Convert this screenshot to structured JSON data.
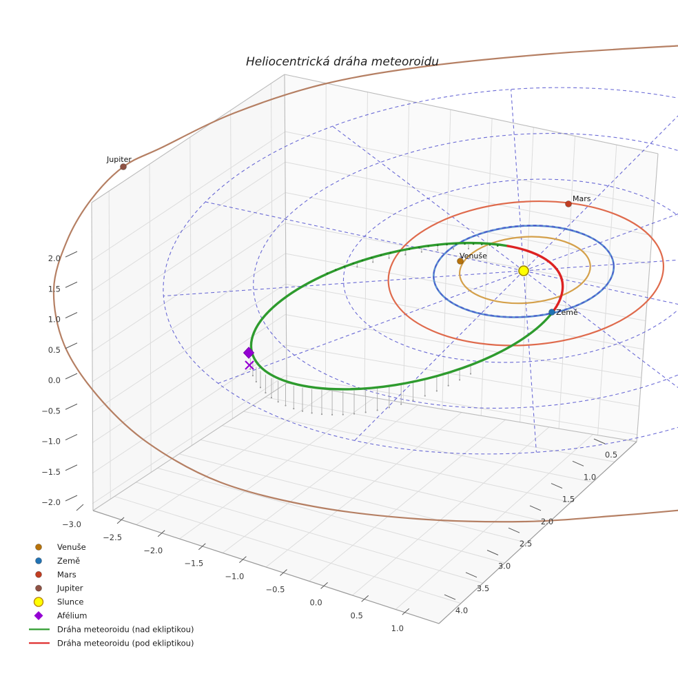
{
  "title": "Heliocentrická dráha meteoroidu",
  "axes": {
    "x_ticks": [
      "−3.0",
      "−2.5",
      "−2.0",
      "−1.5",
      "−1.0",
      "−0.5",
      "0.0",
      "0.5",
      "1.0"
    ],
    "y_ticks": [
      "0.5",
      "1.0",
      "1.5",
      "2.0",
      "2.5",
      "3.0",
      "3.5",
      "4.0"
    ],
    "z_ticks": [
      "2.0",
      "1.5",
      "1.0",
      "0.5",
      "0.0",
      "−0.5",
      "−1.0",
      "−1.5",
      "−2.0"
    ]
  },
  "colors": {
    "venus_orbit": "#d4a04a",
    "earth_orbit": "#5a8ed0",
    "mars_orbit": "#df6a4c",
    "jupiter_orbit": "#b57f63",
    "meteoroid_above": "#2e9b2e",
    "meteoroid_below": "#dd2222",
    "ecliptic_grid": "#4646cc",
    "aphelion": "#9400d3",
    "sun_fill": "#ffff00",
    "sun_edge": "#9a8200",
    "stem": "#aaaaaa"
  },
  "legend": [
    {
      "label": "Venuše",
      "marker": "dot",
      "color": "#b8730a"
    },
    {
      "label": "Země",
      "marker": "dot",
      "color": "#2173b4"
    },
    {
      "label": "Mars",
      "marker": "dot",
      "color": "#c23e22"
    },
    {
      "label": "Jupiter",
      "marker": "dot",
      "color": "#8f5244"
    },
    {
      "label": "Slunce",
      "marker": "sun",
      "color": "#ffff00"
    },
    {
      "label": "Afélium",
      "marker": "diamond",
      "color": "#9400d3"
    },
    {
      "label": "Dráha meteoroidu (nad ekliptikou)",
      "marker": "line",
      "color": "#2e9b2e"
    },
    {
      "label": "Dráha meteoroidu (pod ekliptikou)",
      "marker": "line",
      "color": "#dd2222"
    }
  ],
  "chart_data": {
    "type": "scatter",
    "projection": "3d",
    "title": "Heliocentrická dráha meteoroidu",
    "x_range": [
      -3.0,
      1.0
    ],
    "y_range": [
      0.5,
      4.0
    ],
    "z_range": [
      -2.0,
      2.0
    ],
    "grid": true,
    "legend_position": "lower-left",
    "sun": {
      "label": "Slunce",
      "position_au": [
        0,
        0,
        0
      ]
    },
    "planets": [
      {
        "name": "Venuše",
        "color": "#b8730a",
        "orbit_radius_au": 0.72,
        "position_au": [
          -0.7,
          0.21,
          0
        ]
      },
      {
        "name": "Země",
        "color": "#2173b4",
        "orbit_radius_au": 1.0,
        "position_au": [
          0.31,
          -0.91,
          0
        ]
      },
      {
        "name": "Mars",
        "color": "#c23e22",
        "orbit_radius_au": 1.52,
        "position_au": [
          0.5,
          1.47,
          0
        ]
      },
      {
        "name": "Jupiter",
        "color": "#8f5244",
        "orbit_radius_au": 5.2,
        "position_au": [
          -4.43,
          2.29,
          0
        ]
      }
    ],
    "meteoroid_orbit": {
      "above_ecliptic_label": "Dráha meteoroidu (nad ekliptikou)",
      "below_ecliptic_label": "Dráha meteoroidu (pod ekliptikou)",
      "aphelion_label": "Afélium",
      "aphelion_position_au": [
        -3.05,
        -1.8,
        0.2
      ],
      "aphelion_distance_au": 3.6,
      "perihelion_distance_au": 0.45
    },
    "ecliptic_grid": {
      "circles_au": [
        1,
        2,
        3,
        4
      ],
      "radial_lines_deg_step": 30
    }
  }
}
